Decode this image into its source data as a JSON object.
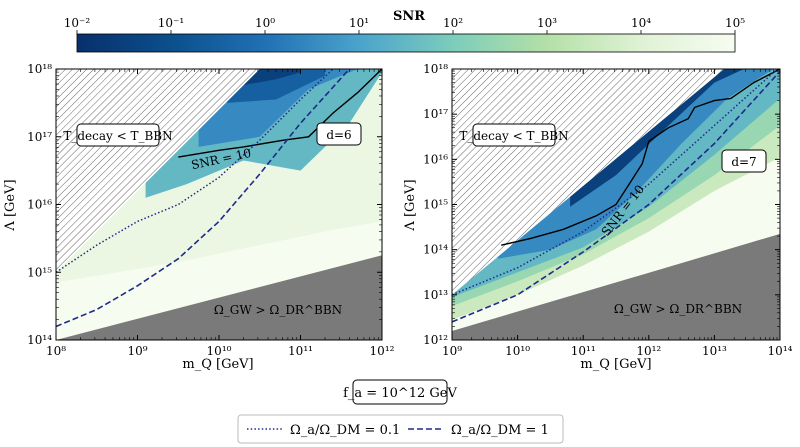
{
  "chart_data": [
    {
      "type": "heatmap",
      "panel": "left",
      "xscale": "log",
      "yscale": "log",
      "xlim_log10": [
        8,
        12
      ],
      "ylim_log10": [
        14,
        18
      ],
      "xticks_log10": [
        8,
        9,
        10,
        11,
        12
      ],
      "yticks_log10": [
        14,
        15,
        16,
        17,
        18
      ],
      "xlabel": "m_Q [GeV]",
      "ylabel": "Λ [GeV]",
      "label_d": "d=6",
      "label_decay": "T_decay < T_BBN",
      "label_gw": "Ω_GW > Ω_DR^BBN",
      "label_snr": "SNR = 10",
      "excluded_decay_boundary": [
        [
          8.0,
          15.0
        ],
        [
          10.5,
          18.0
        ]
      ],
      "excluded_gw_boundary": [
        [
          8.0,
          14.0
        ],
        [
          12.0,
          15.25
        ]
      ],
      "snr_regions": [
        {
          "snr_log10": 2.5,
          "boundary": [
            [
              8.0,
              15.05
            ],
            [
              8.5,
              15.4
            ],
            [
              9.5,
              15.95
            ],
            [
              10.5,
              16.35
            ],
            [
              11.5,
              16.75
            ],
            [
              12.0,
              16.9
            ]
          ]
        },
        {
          "snr_log10": 3.5,
          "boundary": [
            [
              8.6,
              15.25
            ],
            [
              9.5,
              15.5
            ],
            [
              10.5,
              15.95
            ],
            [
              11.5,
              16.25
            ],
            [
              12.0,
              16.35
            ]
          ]
        },
        {
          "snr_log10": 4.5,
          "boundary": [
            [
              8.0,
              14.85
            ],
            [
              9.5,
              15.15
            ],
            [
              10.5,
              15.4
            ],
            [
              11.5,
              15.65
            ],
            [
              12.0,
              15.75
            ]
          ]
        },
        {
          "snr_log10": 1.5,
          "boundary": [
            [
              9.1,
              16.1
            ],
            [
              9.6,
              16.3
            ],
            [
              10.3,
              16.65
            ],
            [
              11.0,
              16.5
            ],
            [
              11.6,
              17.2
            ],
            [
              12.0,
              17.95
            ]
          ]
        },
        {
          "snr_log10": 0.5,
          "boundary": [
            [
              9.75,
              16.85
            ],
            [
              10.5,
              17.0
            ],
            [
              11.1,
              17.7
            ],
            [
              11.7,
              18.0
            ]
          ]
        },
        {
          "snr_log10": -0.5,
          "boundary": [
            [
              10.1,
              17.5
            ],
            [
              10.7,
              17.55
            ],
            [
              11.3,
              17.9
            ]
          ]
        },
        {
          "snr_log10": -1.5,
          "boundary": [
            [
              10.25,
              17.75
            ],
            [
              10.7,
              17.85
            ],
            [
              11.0,
              17.95
            ]
          ]
        }
      ],
      "snr_10_contour": [
        [
          9.5,
          16.7
        ],
        [
          10.0,
          16.8
        ],
        [
          10.3,
          16.85
        ],
        [
          10.8,
          16.95
        ],
        [
          11.1,
          17.0
        ],
        [
          11.4,
          17.35
        ],
        [
          11.7,
          17.65
        ],
        [
          12.0,
          18.0
        ]
      ],
      "omega_ratio_0_1": [
        [
          8.0,
          15.0
        ],
        [
          8.5,
          15.4
        ],
        [
          9.0,
          15.75
        ],
        [
          9.5,
          16.0
        ],
        [
          10.0,
          16.4
        ],
        [
          10.5,
          16.95
        ],
        [
          11.0,
          17.55
        ],
        [
          11.4,
          18.0
        ]
      ],
      "omega_ratio_1": [
        [
          8.0,
          14.2
        ],
        [
          8.5,
          14.45
        ],
        [
          9.0,
          14.8
        ],
        [
          9.5,
          15.2
        ],
        [
          10.0,
          15.75
        ],
        [
          10.5,
          16.45
        ],
        [
          11.0,
          17.2
        ],
        [
          11.6,
          18.0
        ]
      ]
    },
    {
      "type": "heatmap",
      "panel": "right",
      "xscale": "log",
      "yscale": "log",
      "xlim_log10": [
        9,
        14
      ],
      "ylim_log10": [
        12,
        18
      ],
      "xticks_log10": [
        9,
        10,
        11,
        12,
        13,
        14
      ],
      "yticks_log10": [
        12,
        13,
        14,
        15,
        16,
        17,
        18
      ],
      "xlabel": "m_Q [GeV]",
      "ylabel": "Λ [GeV]",
      "label_d": "d=7",
      "label_decay": "T_decay < T_BBN",
      "label_gw": "Ω_GW > Ω_DR^BBN",
      "label_snr": "SNR = 10",
      "excluded_decay_boundary": [
        [
          9.0,
          13.0
        ],
        [
          13.15,
          18.0
        ]
      ],
      "excluded_gw_boundary": [
        [
          9.0,
          12.2
        ],
        [
          14.0,
          14.35
        ]
      ],
      "snr_regions": [
        {
          "snr_log10": 3.5,
          "boundary": [
            [
              9.0,
              12.45
            ],
            [
              10.0,
              13.0
            ],
            [
              11.0,
              13.65
            ],
            [
              12.0,
              14.4
            ],
            [
              13.0,
              15.3
            ],
            [
              14.0,
              16.05
            ]
          ]
        },
        {
          "snr_log10": 2.5,
          "boundary": [
            [
              9.0,
              12.75
            ],
            [
              10.0,
              13.3
            ],
            [
              11.0,
              13.9
            ],
            [
              12.0,
              14.7
            ],
            [
              13.0,
              15.65
            ],
            [
              14.0,
              16.75
            ]
          ]
        },
        {
          "snr_log10": 1.5,
          "boundary": [
            [
              9.0,
              12.95
            ],
            [
              10.0,
              13.5
            ],
            [
              11.0,
              14.05
            ],
            [
              12.0,
              14.95
            ],
            [
              13.0,
              16.1
            ],
            [
              14.0,
              17.35
            ]
          ]
        },
        {
          "snr_log10": 0.5,
          "boundary": [
            [
              9.7,
              13.8
            ],
            [
              10.5,
              14.0
            ],
            [
              11.2,
              14.45
            ],
            [
              11.8,
              15.25
            ],
            [
              12.5,
              16.35
            ],
            [
              13.2,
              17.35
            ],
            [
              13.9,
              18.0
            ]
          ]
        },
        {
          "snr_log10": -1.5,
          "boundary": [
            [
              10.8,
              14.95
            ],
            [
              11.5,
              15.65
            ],
            [
              12.3,
              16.75
            ],
            [
              13.0,
              17.7
            ],
            [
              13.45,
              18.0
            ]
          ]
        }
      ],
      "snr_10_contour": [
        [
          9.75,
          14.1
        ],
        [
          10.2,
          14.25
        ],
        [
          10.7,
          14.45
        ],
        [
          11.2,
          14.75
        ],
        [
          11.5,
          15.0
        ],
        [
          11.7,
          15.45
        ],
        [
          11.9,
          15.9
        ],
        [
          12.0,
          16.4
        ],
        [
          12.3,
          16.7
        ],
        [
          12.6,
          16.9
        ],
        [
          12.7,
          17.15
        ],
        [
          13.0,
          17.3
        ],
        [
          13.25,
          17.35
        ],
        [
          13.6,
          17.7
        ],
        [
          14.0,
          18.0
        ]
      ],
      "omega_ratio_0_1": [
        [
          9.0,
          13.0
        ],
        [
          10.0,
          13.6
        ],
        [
          11.0,
          14.4
        ],
        [
          12.0,
          15.45
        ],
        [
          13.0,
          16.75
        ],
        [
          14.0,
          18.05
        ]
      ],
      "omega_ratio_1": [
        [
          9.0,
          12.4
        ],
        [
          10.0,
          13.0
        ],
        [
          11.0,
          13.95
        ],
        [
          12.0,
          15.0
        ],
        [
          13.0,
          16.35
        ],
        [
          14.0,
          17.95
        ]
      ]
    }
  ],
  "colorbar": {
    "title": "SNR",
    "scale": "log",
    "range_log10": [
      -2,
      5
    ],
    "ticks_log10": [
      -2,
      -1,
      0,
      1,
      2,
      3,
      4,
      5
    ],
    "stops": [
      "#08306b",
      "#0b4f8c",
      "#2171b5",
      "#4aa3cc",
      "#7ccdbb",
      "#b4e0a7",
      "#dff2d5",
      "#f7fcf0"
    ]
  },
  "fa_label": "f_a = 10^12 GeV",
  "legend": {
    "dotted": "Ω_a/Ω_DM = 0.1",
    "dashed": "Ω_a/Ω_DM = 1"
  },
  "colors": {
    "excluded_gray": "#7a7a7a",
    "line_navy": "#1f2a8a",
    "contour_black": "#000000"
  }
}
